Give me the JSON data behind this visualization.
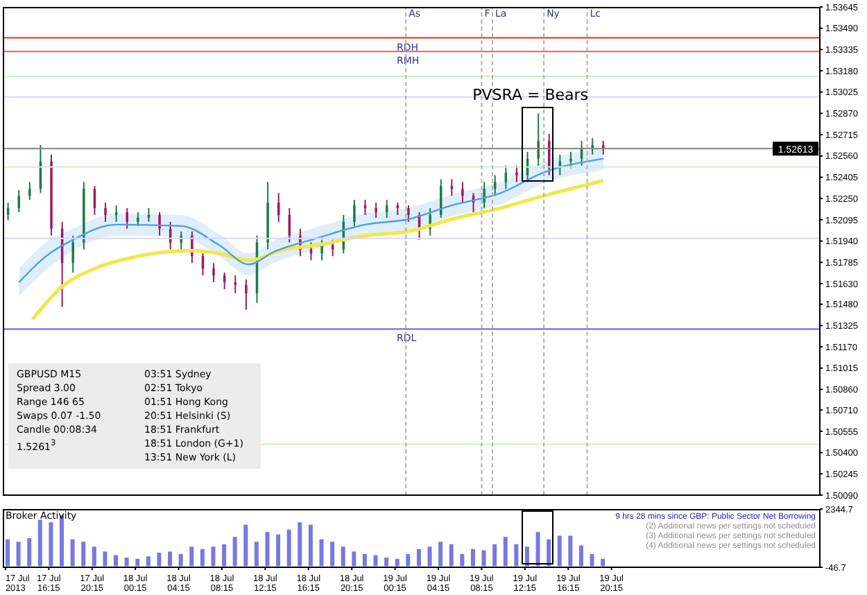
{
  "chart_data": [
    {
      "type": "candlestick",
      "x": [
        "2013-07-17T12:30",
        "2013-07-17T13:30",
        "2013-07-17T14:30",
        "2013-07-17T15:30",
        "2013-07-17T16:30",
        "2013-07-17T17:30",
        "2013-07-17T18:30",
        "2013-07-17T19:30",
        "2013-07-17T20:30",
        "2013-07-17T21:30",
        "2013-07-17T22:30",
        "2013-07-17T23:30",
        "2013-07-18T00:30",
        "2013-07-18T01:30",
        "2013-07-18T02:30",
        "2013-07-18T03:30",
        "2013-07-18T04:30",
        "2013-07-18T05:30",
        "2013-07-18T06:30",
        "2013-07-18T07:30",
        "2013-07-18T08:30",
        "2013-07-18T09:30",
        "2013-07-18T10:30",
        "2013-07-18T11:30",
        "2013-07-18T12:30",
        "2013-07-18T13:30",
        "2013-07-18T14:30",
        "2013-07-18T15:30",
        "2013-07-18T16:30",
        "2013-07-18T17:30",
        "2013-07-18T18:30",
        "2013-07-18T19:30",
        "2013-07-18T20:30",
        "2013-07-18T21:30",
        "2013-07-18T22:30",
        "2013-07-18T23:30",
        "2013-07-19T00:30",
        "2013-07-19T01:30",
        "2013-07-19T02:30",
        "2013-07-19T03:30",
        "2013-07-19T04:30",
        "2013-07-19T05:30",
        "2013-07-19T06:30",
        "2013-07-19T07:30",
        "2013-07-19T08:30",
        "2013-07-19T09:30",
        "2013-07-19T10:30",
        "2013-07-19T11:30",
        "2013-07-19T12:30",
        "2013-07-19T13:30",
        "2013-07-19T14:30",
        "2013-07-19T15:30",
        "2013-07-19T16:30",
        "2013-07-19T17:30",
        "2013-07-19T18:30",
        "2013-07-19T19:30"
      ],
      "ohlc": [
        [
          1.5213,
          1.5222,
          1.5209,
          1.5218
        ],
        [
          1.5218,
          1.5231,
          1.5215,
          1.5227
        ],
        [
          1.5227,
          1.5237,
          1.5224,
          1.5232
        ],
        [
          1.5232,
          1.5264,
          1.5229,
          1.5252
        ],
        [
          1.5252,
          1.5257,
          1.5198,
          1.5203
        ],
        [
          1.5203,
          1.5208,
          1.5146,
          1.5178
        ],
        [
          1.5178,
          1.5198,
          1.5171,
          1.5193
        ],
        [
          1.5193,
          1.5237,
          1.5188,
          1.5232
        ],
        [
          1.5232,
          1.5234,
          1.5213,
          1.5218
        ],
        [
          1.5218,
          1.5222,
          1.5208,
          1.5213
        ],
        [
          1.5213,
          1.522,
          1.5208,
          1.5215
        ],
        [
          1.5215,
          1.5218,
          1.5203,
          1.5208
        ],
        [
          1.5208,
          1.5215,
          1.5205,
          1.5211
        ],
        [
          1.5211,
          1.5218,
          1.5208,
          1.5213
        ],
        [
          1.5213,
          1.5215,
          1.5198,
          1.5203
        ],
        [
          1.5203,
          1.5208,
          1.5188,
          1.5193
        ],
        [
          1.5193,
          1.5201,
          1.5188,
          1.5198
        ],
        [
          1.5198,
          1.5201,
          1.5178,
          1.5183
        ],
        [
          1.5183,
          1.5185,
          1.5169,
          1.5174
        ],
        [
          1.5174,
          1.5178,
          1.5164,
          1.5169
        ],
        [
          1.5169,
          1.5171,
          1.5159,
          1.5164
        ],
        [
          1.5164,
          1.5169,
          1.5156,
          1.5162
        ],
        [
          1.5162,
          1.5166,
          1.5144,
          1.5156
        ],
        [
          1.5156,
          1.5198,
          1.5149,
          1.5193
        ],
        [
          1.5193,
          1.5237,
          1.5188,
          1.5222
        ],
        [
          1.5222,
          1.5229,
          1.5208,
          1.5213
        ],
        [
          1.5213,
          1.5218,
          1.5193,
          1.5198
        ],
        [
          1.5198,
          1.5203,
          1.5183,
          1.5188
        ],
        [
          1.5188,
          1.5193,
          1.518,
          1.5185
        ],
        [
          1.5185,
          1.5195,
          1.518,
          1.5191
        ],
        [
          1.5191,
          1.5195,
          1.5183,
          1.5188
        ],
        [
          1.5188,
          1.5213,
          1.5185,
          1.5208
        ],
        [
          1.5208,
          1.5224,
          1.5205,
          1.522
        ],
        [
          1.522,
          1.5224,
          1.5213,
          1.5218
        ],
        [
          1.5218,
          1.5222,
          1.5211,
          1.5215
        ],
        [
          1.5215,
          1.5224,
          1.5211,
          1.522
        ],
        [
          1.522,
          1.5222,
          1.5213,
          1.5218
        ],
        [
          1.5218,
          1.522,
          1.5208,
          1.5213
        ],
        [
          1.5213,
          1.5215,
          1.5195,
          1.5203
        ],
        [
          1.5203,
          1.5218,
          1.5198,
          1.5213
        ],
        [
          1.5213,
          1.5239,
          1.5211,
          1.5234
        ],
        [
          1.5234,
          1.5239,
          1.5227,
          1.5232
        ],
        [
          1.5232,
          1.5237,
          1.5222,
          1.5227
        ],
        [
          1.5227,
          1.5229,
          1.5215,
          1.5222
        ],
        [
          1.5222,
          1.5237,
          1.5218,
          1.5232
        ],
        [
          1.5232,
          1.5242,
          1.5227,
          1.5237
        ],
        [
          1.5237,
          1.5249,
          1.5232,
          1.5244
        ],
        [
          1.5244,
          1.5249,
          1.5237,
          1.5242
        ],
        [
          1.5242,
          1.5259,
          1.5237,
          1.5254
        ],
        [
          1.5254,
          1.5287,
          1.5249,
          1.5267
        ],
        [
          1.5267,
          1.5272,
          1.5242,
          1.5247
        ],
        [
          1.5247,
          1.5257,
          1.5242,
          1.5252
        ],
        [
          1.5252,
          1.5259,
          1.5247,
          1.5254
        ],
        [
          1.5254,
          1.5267,
          1.5249,
          1.5262
        ],
        [
          1.5262,
          1.5269,
          1.5257,
          1.5264
        ],
        [
          1.5264,
          1.5267,
          1.5257,
          1.52613
        ]
      ],
      "colors": [
        "#1e7b45",
        "#1e7b45",
        "#1e7b45",
        "#1e7b45",
        "#a0195f",
        "#a0195f",
        "#1e7b45",
        "#1e7b45",
        "#a0195f",
        "#a0195f",
        "#1e7b45",
        "#a0195f",
        "#1e7b45",
        "#1e7b45",
        "#a0195f",
        "#a0195f",
        "#1e7b45",
        "#a0195f",
        "#a0195f",
        "#a0195f",
        "#a0195f",
        "#a0195f",
        "#a0195f",
        "#1e7b45",
        "#1e7b45",
        "#a0195f",
        "#a0195f",
        "#a0195f",
        "#a0195f",
        "#1e7b45",
        "#a0195f",
        "#1e7b45",
        "#1e7b45",
        "#a0195f",
        "#a0195f",
        "#1e7b45",
        "#a0195f",
        "#a0195f",
        "#a0195f",
        "#1e7b45",
        "#1e7b45",
        "#a0195f",
        "#a0195f",
        "#a0195f",
        "#1e7b45",
        "#1e7b45",
        "#1e7b45",
        "#a0195f",
        "#1e7b45",
        "#1e7b45",
        "#a0195f",
        "#1e7b45",
        "#1e7b45",
        "#1e7b45",
        "#1e7b45",
        "#a0195f"
      ],
      "series": [
        {
          "type": "line",
          "color": "#f2e74a",
          "x": [
            "2013-07-17T14:45",
            "2013-07-17T17:30",
            "2013-07-17T20:30",
            "2013-07-18T00:30",
            "2013-07-18T05:30",
            "2013-07-18T08:00",
            "2013-07-18T10:45",
            "2013-07-18T14:00",
            "2013-07-18T17:00",
            "2013-07-18T21:30",
            "2013-07-19T01:30",
            "2013-07-19T05:30",
            "2013-07-19T10:00",
            "2013-07-19T14:00",
            "2013-07-19T19:30"
          ],
          "values": [
            1.5137,
            1.5161,
            1.5174,
            1.5183,
            1.5187,
            1.5185,
            1.518,
            1.5188,
            1.5191,
            1.5198,
            1.5201,
            1.521,
            1.5218,
            1.5227,
            1.5238
          ]
        },
        {
          "type": "line",
          "color": "#4d9fe8",
          "x": [
            "2013-07-17T13:30",
            "2013-07-17T16:00",
            "2013-07-17T18:30",
            "2013-07-17T22:30",
            "2013-07-18T04:30",
            "2013-07-18T08:00",
            "2013-07-18T10:45",
            "2013-07-18T13:00",
            "2013-07-18T17:00",
            "2013-07-18T21:30",
            "2013-07-19T01:30",
            "2013-07-19T05:30",
            "2013-07-19T10:00",
            "2013-07-19T14:00",
            "2013-07-19T19:30"
          ],
          "values": [
            1.5164,
            1.5183,
            1.5195,
            1.5206,
            1.5205,
            1.5191,
            1.5177,
            1.5186,
            1.5196,
            1.5206,
            1.521,
            1.522,
            1.5229,
            1.5244,
            1.5254
          ],
          "lower": [
            1.5154,
            1.5173,
            1.5187,
            1.5198,
            1.5197,
            1.5183,
            1.5169,
            1.5178,
            1.5188,
            1.5198,
            1.5202,
            1.5212,
            1.5221,
            1.5236,
            1.5246
          ],
          "upper": [
            1.5174,
            1.5193,
            1.5203,
            1.5214,
            1.5213,
            1.5199,
            1.5185,
            1.5194,
            1.5204,
            1.5214,
            1.5218,
            1.5228,
            1.5237,
            1.5252,
            1.5262
          ]
        }
      ],
      "xlim": [
        "2013-07-17T12:00",
        "2013-07-20T15:30"
      ],
      "ylim": [
        1.5009,
        1.53645
      ],
      "yticks": [
        {
          "value": 1.5009,
          "label": "1.50090"
        },
        {
          "value": 1.50245,
          "label": "1.50245"
        },
        {
          "value": 1.504,
          "label": "1.50400"
        },
        {
          "value": 1.50555,
          "label": "1.50555"
        },
        {
          "value": 1.5071,
          "label": "1.50710"
        },
        {
          "value": 1.5086,
          "label": "1.50860"
        },
        {
          "value": 1.51015,
          "label": "1.51015"
        },
        {
          "value": 1.5117,
          "label": "1.51170"
        },
        {
          "value": 1.51325,
          "label": "1.51325"
        },
        {
          "value": 1.5148,
          "label": "1.51480"
        },
        {
          "value": 1.5163,
          "label": "1.51630"
        },
        {
          "value": 1.51785,
          "label": "1.51785"
        },
        {
          "value": 1.5194,
          "label": "1.51940"
        },
        {
          "value": 1.52095,
          "label": "1.52095"
        },
        {
          "value": 1.5225,
          "label": "1.52250"
        },
        {
          "value": 1.52405,
          "label": "1.52405"
        },
        {
          "value": 1.5256,
          "label": "1.52560"
        },
        {
          "value": 1.52715,
          "label": "1.52715"
        },
        {
          "value": 1.5287,
          "label": "1.52870"
        },
        {
          "value": 1.53025,
          "label": "1.53025"
        },
        {
          "value": 1.5318,
          "label": "1.53180"
        },
        {
          "value": 1.53335,
          "label": "1.53335"
        },
        {
          "value": 1.5349,
          "label": "1.53490"
        },
        {
          "value": 1.53645,
          "label": "1.53645"
        }
      ],
      "tick_labels": "y",
      "ref_lines": [
        {
          "axis": "y",
          "value": 1.5342,
          "label": "RDH",
          "color": "#ff2a00"
        },
        {
          "axis": "y",
          "value": 1.5332,
          "label": "RMH",
          "color": "#f06040"
        },
        {
          "axis": "y",
          "value": 1.513,
          "label": "RDL",
          "color": "#6a5acd"
        },
        {
          "axis": "y",
          "value": 1.52613,
          "label": "1.52613",
          "color": "#808080"
        },
        {
          "axis": "y",
          "value": 1.5314,
          "label": null,
          "color": "#ccf0cc"
        },
        {
          "axis": "y",
          "value": 1.5299,
          "label": null,
          "color": "#d8d8f8"
        },
        {
          "axis": "y",
          "value": 1.5248,
          "label": null,
          "color": "#ccf0cc"
        },
        {
          "axis": "y",
          "value": 1.5196,
          "label": null,
          "color": "#d8d8f8"
        },
        {
          "axis": "y",
          "value": 1.5046,
          "label": null,
          "color": "#ccf0cc"
        },
        {
          "axis": "x",
          "value": "2013-07-19T01:15",
          "label": "As",
          "color": "#b0b0b0",
          "line_style": "dashed"
        },
        {
          "axis": "x",
          "value": "2013-07-19T08:15",
          "label": "F",
          "color": "#b0b0b0",
          "line_style": "dashed"
        },
        {
          "axis": "x",
          "value": "2013-07-19T09:15",
          "label": "La",
          "color": "#b0b0b0",
          "line_style": "dashed"
        },
        {
          "axis": "x",
          "value": "2013-07-19T14:00",
          "label": "Ny",
          "color": "#b0b0b0",
          "line_style": "dashed"
        },
        {
          "axis": "x",
          "value": "2013-07-19T18:00",
          "label": "Lc",
          "color": "#b0b0b0",
          "line_style": "dashed"
        }
      ],
      "annotations": [
        {
          "text": "PVSRA = Bears",
          "x": "2013-07-19T12:45",
          "y": 1.5298
        },
        "GBPUSD  M15",
        "Spread 3.00",
        "Range 146 65",
        "Swaps 0.07 -1.50",
        "Candle 00:08:34",
        "1.5261$^{3}$",
        "03:51 Sydney",
        "02:51 Tokyo",
        "01:51 Hong Kong",
        "20:51 Helsinki (S)",
        "18:51 Frankfurt",
        "18:51 London (G+1)",
        "13:51 New York (L)"
      ]
    },
    {
      "type": "bar",
      "title": "Broker Activity",
      "color": "#7878e0",
      "x": [
        "2013-07-17T12:30",
        "2013-07-17T13:30",
        "2013-07-17T14:30",
        "2013-07-17T15:30",
        "2013-07-17T16:30",
        "2013-07-17T17:30",
        "2013-07-17T18:30",
        "2013-07-17T19:30",
        "2013-07-17T20:30",
        "2013-07-17T21:30",
        "2013-07-17T22:30",
        "2013-07-17T23:30",
        "2013-07-18T00:30",
        "2013-07-18T01:30",
        "2013-07-18T02:30",
        "2013-07-18T03:30",
        "2013-07-18T04:30",
        "2013-07-18T05:30",
        "2013-07-18T06:30",
        "2013-07-18T07:30",
        "2013-07-18T08:30",
        "2013-07-18T09:30",
        "2013-07-18T10:30",
        "2013-07-18T11:30",
        "2013-07-18T12:30",
        "2013-07-18T13:30",
        "2013-07-18T14:30",
        "2013-07-18T15:30",
        "2013-07-18T16:30",
        "2013-07-18T17:30",
        "2013-07-18T18:30",
        "2013-07-18T19:30",
        "2013-07-18T20:30",
        "2013-07-18T21:30",
        "2013-07-18T22:30",
        "2013-07-18T23:30",
        "2013-07-19T00:30",
        "2013-07-19T01:30",
        "2013-07-19T02:30",
        "2013-07-19T03:30",
        "2013-07-19T04:30",
        "2013-07-19T05:30",
        "2013-07-19T06:30",
        "2013-07-19T07:30",
        "2013-07-19T08:30",
        "2013-07-19T09:30",
        "2013-07-19T10:30",
        "2013-07-19T11:30",
        "2013-07-19T12:30",
        "2013-07-19T13:30",
        "2013-07-19T14:30",
        "2013-07-19T15:30",
        "2013-07-19T16:30",
        "2013-07-19T17:30",
        "2013-07-19T18:30",
        "2013-07-19T19:30"
      ],
      "values": [
        1100,
        1000,
        1150,
        1900,
        1800,
        2100,
        1100,
        1000,
        800,
        600,
        450,
        350,
        300,
        400,
        550,
        600,
        500,
        800,
        700,
        800,
        900,
        1200,
        1700,
        1000,
        1400,
        1300,
        1500,
        1800,
        1700,
        1100,
        1000,
        800,
        600,
        500,
        450,
        350,
        300,
        500,
        700,
        800,
        1000,
        900,
        500,
        700,
        650,
        900,
        1200,
        900,
        800,
        1400,
        1100,
        1250,
        1250,
        850,
        500,
        300
      ],
      "xlim": [
        "2013-07-17T12:00",
        "2013-07-20T15:30"
      ],
      "xticks": [
        {
          "value": "2013-07-17T12:15",
          "label": "17 Jul 2013"
        },
        {
          "value": "2013-07-17T16:15",
          "label": "17 Jul 16:15"
        },
        {
          "value": "2013-07-17T20:15",
          "label": "17 Jul 20:15"
        },
        {
          "value": "2013-07-18T00:15",
          "label": "18 Jul 00:15"
        },
        {
          "value": "2013-07-18T04:15",
          "label": "18 Jul 04:15"
        },
        {
          "value": "2013-07-18T08:15",
          "label": "18 Jul 08:15"
        },
        {
          "value": "2013-07-18T12:15",
          "label": "18 Jul 12:15"
        },
        {
          "value": "2013-07-18T16:15",
          "label": "18 Jul 16:15"
        },
        {
          "value": "2013-07-18T20:15",
          "label": "18 Jul 20:15"
        },
        {
          "value": "2013-07-19T00:15",
          "label": "19 Jul 00:15"
        },
        {
          "value": "2013-07-19T04:15",
          "label": "19 Jul 04:15"
        },
        {
          "value": "2013-07-19T08:15",
          "label": "19 Jul 08:15"
        },
        {
          "value": "2013-07-19T12:15",
          "label": "19 Jul 12:15"
        },
        {
          "value": "2013-07-19T16:15",
          "label": "19 Jul 16:15"
        },
        {
          "value": "2013-07-19T20:15",
          "label": "19 Jul 20:15"
        }
      ],
      "ylim": [
        -46.7,
        2344.7
      ],
      "yticks": [
        -46.7,
        2344.7
      ],
      "annotations": [
        "9 hrs 28 mins since GBP: Public Sector Net Borrowing",
        "(2) Additional news per settings not scheduled",
        "(3) Additional news per settings not scheduled",
        "(4) Additional news per settings not scheduled"
      ]
    }
  ]
}
